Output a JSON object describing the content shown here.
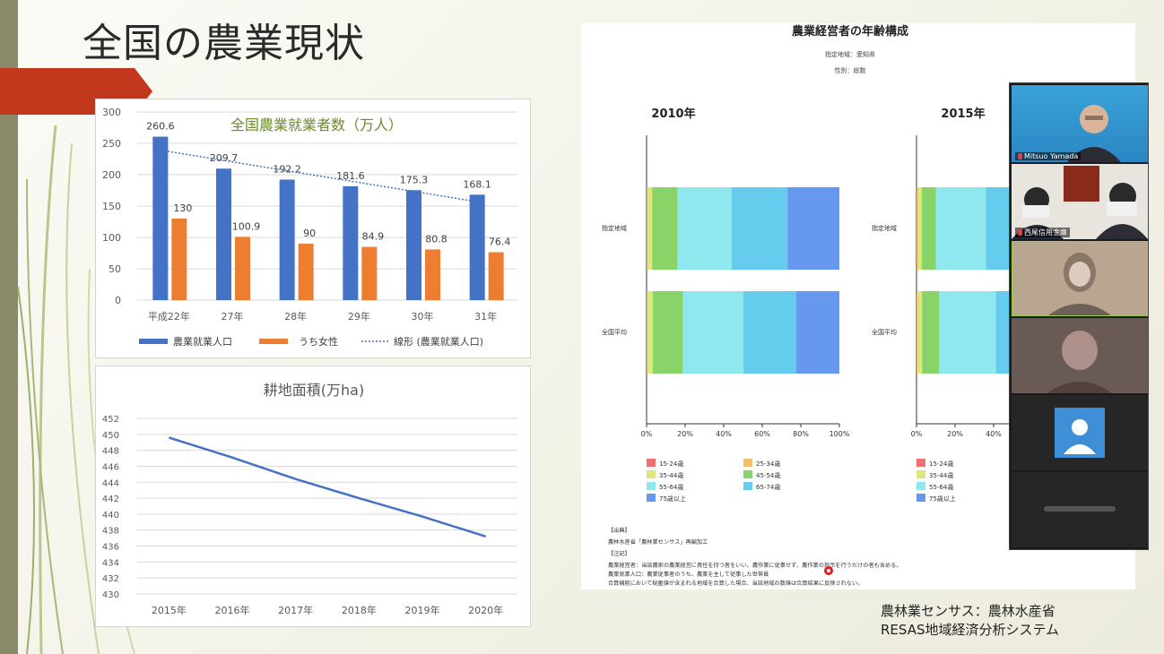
{
  "slide": {
    "title": "全国の農業現状",
    "source_line1": "農林業センサス：農林水産省",
    "source_line2": "RESAS地域経済分析システム"
  },
  "chart_data": [
    {
      "type": "bar",
      "title": "全国農業就業者数（万人）",
      "categories": [
        "平成22年",
        "27年",
        "28年",
        "29年",
        "30年",
        "31年"
      ],
      "series": [
        {
          "name": "農業就業人口",
          "values": [
            260.6,
            209.7,
            192.2,
            181.6,
            175.3,
            168.1
          ],
          "color": "#4472c4"
        },
        {
          "name": "うち女性",
          "values": [
            130,
            100.9,
            90,
            84.9,
            80.8,
            76.4
          ],
          "color": "#ed7d31"
        }
      ],
      "trendline": {
        "name": "線形 (農業就業人口)",
        "color": "#4472c4"
      },
      "ylim": [
        0,
        300
      ],
      "yticks": [
        0,
        50,
        100,
        150,
        200,
        250,
        300
      ],
      "legend": "bottom",
      "grid": true
    },
    {
      "type": "line",
      "title": "耕地面積(万ha)",
      "x": [
        "2015年",
        "2016年",
        "2017年",
        "2018年",
        "2019年",
        "2020年"
      ],
      "series": [
        {
          "values": [
            449.6,
            447.1,
            444.4,
            442.0,
            439.7,
            437.2
          ],
          "color": "#4472c4"
        }
      ],
      "ylim": [
        430,
        452
      ],
      "yticks": [
        430,
        432,
        434,
        436,
        438,
        440,
        442,
        444,
        446,
        448,
        450,
        452
      ],
      "grid": true
    },
    {
      "type": "bar",
      "stacked": true,
      "orientation": "horizontal",
      "title": "農業経営者の年齢構成",
      "subtitle_region": "指定地域：愛知県",
      "subtitle_sex": "性別：総数",
      "panels": [
        {
          "title": "2010年",
          "categories": [
            "指定地域",
            "全国平均"
          ],
          "series": [
            {
              "name": "15-24歳",
              "values": [
                0.1,
                0.1
              ]
            },
            {
              "name": "25-34歳",
              "values": [
                0.5,
                0.4
              ]
            },
            {
              "name": "35-44歳",
              "values": [
                2.3,
                2.7
              ]
            },
            {
              "name": "45-54歳",
              "values": [
                13.1,
                15.6
              ]
            },
            {
              "name": "55-64歳",
              "values": [
                28.1,
                31.4
              ]
            },
            {
              "name": "65-74歳",
              "values": [
                29.0,
                27.3
              ]
            },
            {
              "name": "75歳以上",
              "values": [
                26.9,
                22.5
              ]
            }
          ]
        },
        {
          "title": "2015年",
          "categories": [
            "指定地域",
            "全国平均"
          ],
          "series": [
            {
              "name": "15-24歳",
              "values": [
                0.1,
                0.1
              ]
            },
            {
              "name": "25-34歳",
              "values": [
                0.6,
                0.5
              ]
            },
            {
              "name": "35-44歳",
              "values": [
                2.0,
                2.3
              ]
            },
            {
              "name": "45-54歳",
              "values": [
                7.3,
                8.9
              ]
            },
            {
              "name": "55-64歳",
              "values": [
                26.0,
                29.4
              ]
            },
            {
              "name": "65-74歳",
              "values": [
                32.5,
                32.0
              ]
            },
            {
              "name": "75歳以上",
              "values": [
                31.5,
                26.8
              ]
            }
          ]
        }
      ],
      "xticks": [
        "0%",
        "20%",
        "40%",
        "60%",
        "80%",
        "100%"
      ],
      "colors": [
        "#f07070",
        "#f2c06a",
        "#dde878",
        "#88d468",
        "#8ee8ee",
        "#66ccee",
        "#6699ee"
      ],
      "legend": "bottom"
    }
  ],
  "resas": {
    "legend": [
      "15-24歳",
      "25-34歳",
      "35-44歳",
      "45-54歳",
      "55-64歳",
      "65-74歳",
      "75歳以上"
    ],
    "notes_heading": "【出典】",
    "notes_source": "農林水産省「農林業センサス」再編加工",
    "notes_label": "【注記】",
    "note1": "農業経営者：当該農家の農業経営に責任を持つ者をいい、農作業に従事せず、農作業の指示を行うだけの者も含める。",
    "note2": "農業就業人口：農業従事者のうち、農業を主して従事した世帯員",
    "note3": "合算機能において秘匿値が含まれる地域を合算した場合、当該地域の数値は合算結果に反映されない。"
  },
  "zoom": {
    "participants": [
      "Mitsuo Yamada",
      "西尾信用金庫",
      "",
      "",
      "",
      ""
    ]
  }
}
